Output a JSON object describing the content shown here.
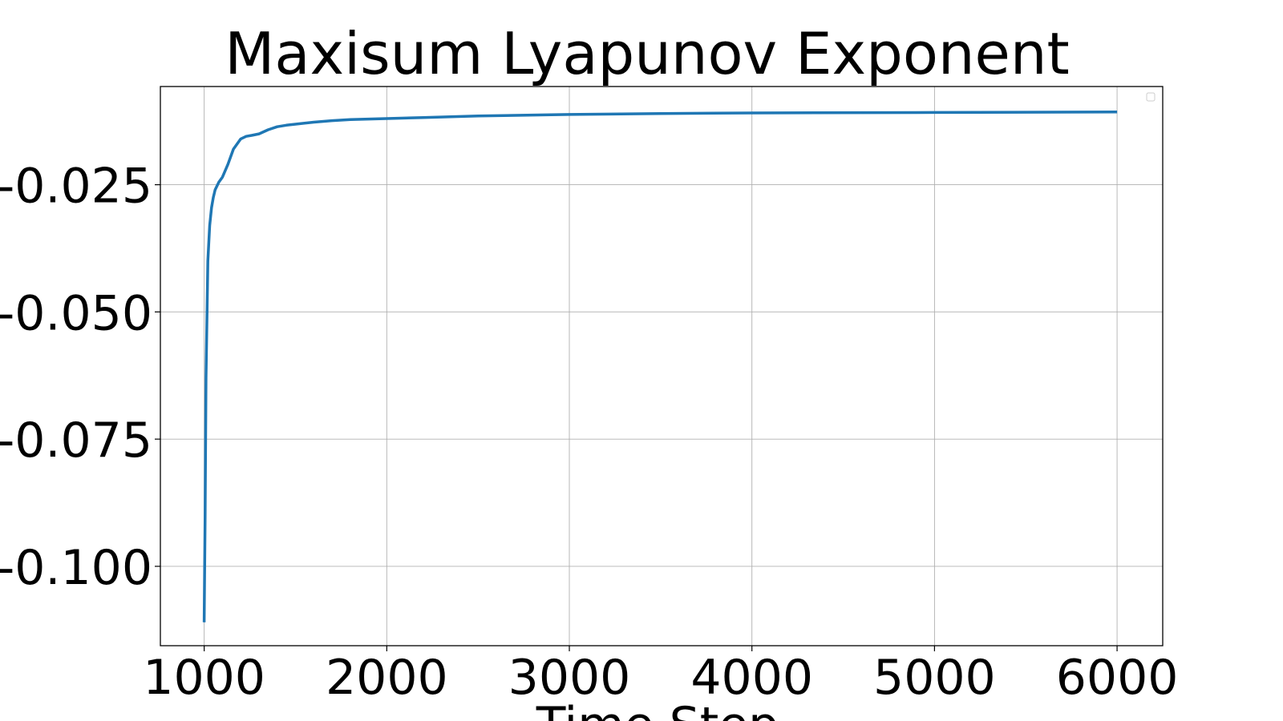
{
  "chart_data": {
    "type": "line",
    "title": "Maxisum Lyapunov Exponent",
    "xlabel": "Time Step",
    "ylabel": "",
    "xlim": [
      760,
      6250
    ],
    "ylim": [
      -0.1156,
      -0.0057
    ],
    "xticks": [
      1000,
      2000,
      3000,
      4000,
      5000,
      6000
    ],
    "xtick_labels": [
      "1000",
      "2000",
      "3000",
      "4000",
      "5000",
      "6000"
    ],
    "yticks": [
      -0.1,
      -0.075,
      -0.05,
      -0.025
    ],
    "ytick_labels": [
      "-0.100",
      "-0.075",
      "-0.050",
      "-0.025"
    ],
    "grid": true,
    "legend": "top-right (empty)",
    "series": [
      {
        "color": "#1f77b4",
        "x": [
          1000,
          1005,
          1010,
          1020,
          1030,
          1040,
          1050,
          1060,
          1080,
          1100,
          1130,
          1160,
          1200,
          1230,
          1260,
          1300,
          1350,
          1400,
          1450,
          1500,
          1600,
          1700,
          1800,
          2000,
          2200,
          2500,
          3000,
          3500,
          4000,
          5000,
          6000
        ],
        "y": [
          -0.111,
          -0.09,
          -0.063,
          -0.04,
          -0.033,
          -0.0295,
          -0.0275,
          -0.026,
          -0.0245,
          -0.0235,
          -0.021,
          -0.018,
          -0.016,
          -0.0155,
          -0.0153,
          -0.015,
          -0.0142,
          -0.0136,
          -0.0133,
          -0.0131,
          -0.0127,
          -0.0124,
          -0.0122,
          -0.012,
          -0.0118,
          -0.0115,
          -0.0112,
          -0.011,
          -0.0109,
          -0.0108,
          -0.0107
        ]
      }
    ]
  }
}
